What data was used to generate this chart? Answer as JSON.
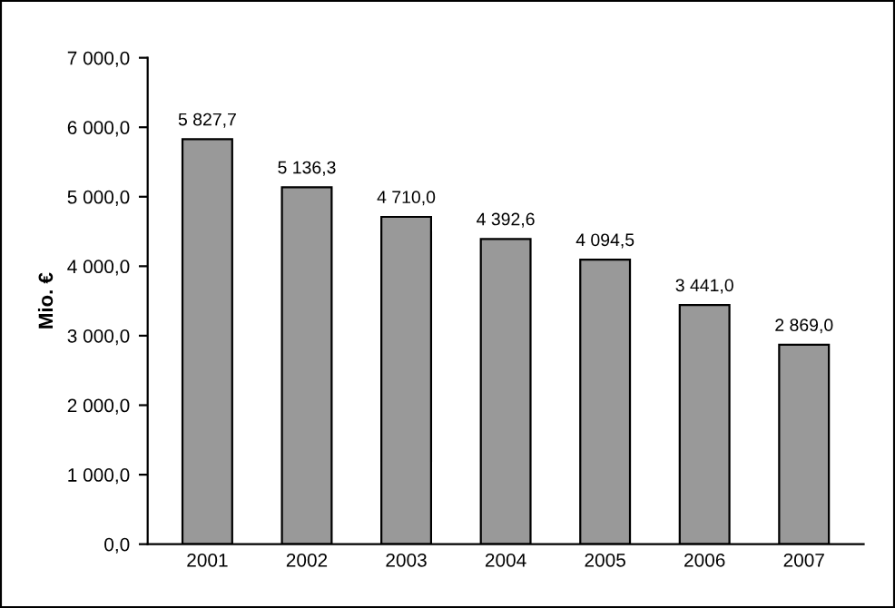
{
  "chart_data": {
    "type": "bar",
    "ylabel": "Mio. €",
    "categories": [
      "2001",
      "2002",
      "2003",
      "2004",
      "2005",
      "2006",
      "2007"
    ],
    "values": [
      5827.7,
      5136.3,
      4710.0,
      4392.6,
      4094.5,
      3441.0,
      2869.0
    ],
    "value_labels": [
      "5 827,7",
      "5 136,3",
      "4 710,0",
      "4 392,6",
      "4 094,5",
      "3 441,0",
      "2 869,0"
    ],
    "color": "#999999",
    "ylim": [
      0,
      7000
    ],
    "yticks": [
      {
        "value": 0,
        "label": "0,0"
      },
      {
        "value": 1000,
        "label": "1 000,0"
      },
      {
        "value": 2000,
        "label": "2 000,0"
      },
      {
        "value": 3000,
        "label": "3 000,0"
      },
      {
        "value": 4000,
        "label": "4 000,0"
      },
      {
        "value": 5000,
        "label": "5 000,0"
      },
      {
        "value": 6000,
        "label": "6 000,0"
      },
      {
        "value": 7000,
        "label": "7 000,0"
      }
    ],
    "grid": false
  }
}
